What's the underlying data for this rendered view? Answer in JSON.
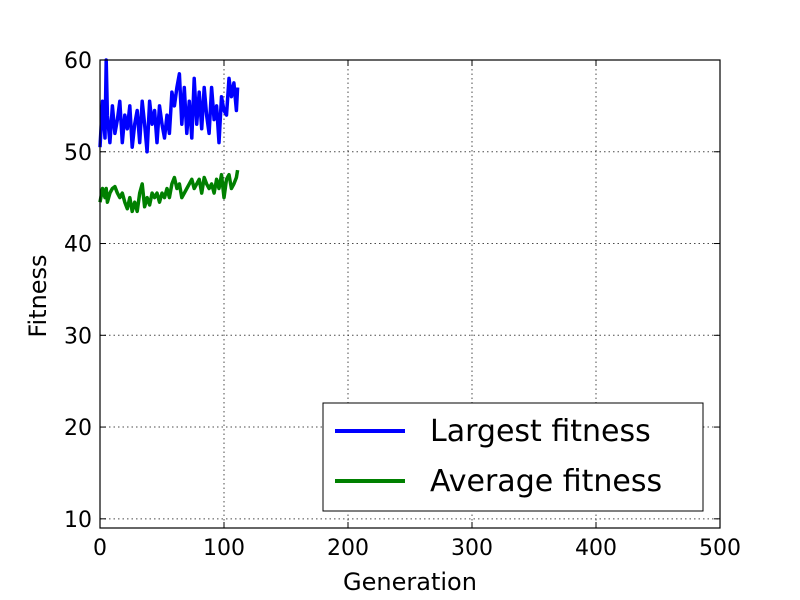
{
  "chart_data": {
    "type": "line",
    "xlabel": "Generation",
    "ylabel": "Fitness",
    "xlim": [
      0,
      500
    ],
    "ylim": [
      9,
      60
    ],
    "xticks": [
      0,
      100,
      200,
      300,
      400,
      500
    ],
    "yticks": [
      10,
      20,
      30,
      40,
      50,
      60
    ],
    "grid": true,
    "legend_position": "lower-right",
    "series": [
      {
        "name": "Largest fitness",
        "color": "#0000ff",
        "x": [
          0,
          2,
          4,
          5,
          6,
          8,
          10,
          12,
          14,
          16,
          18,
          20,
          22,
          24,
          26,
          28,
          30,
          32,
          34,
          36,
          38,
          40,
          42,
          44,
          46,
          48,
          50,
          52,
          54,
          56,
          58,
          60,
          62,
          64,
          66,
          68,
          70,
          72,
          74,
          76,
          78,
          80,
          82,
          84,
          86,
          88,
          90,
          92,
          94,
          96,
          98,
          100,
          102,
          104,
          106,
          108,
          110,
          111
        ],
        "values": [
          50.5,
          55.5,
          51.5,
          60,
          54,
          51,
          55,
          52,
          53.5,
          55.5,
          51,
          54,
          52.5,
          55,
          50.5,
          53,
          54.5,
          51,
          55.5,
          53,
          50,
          55.5,
          53,
          54.5,
          51,
          55,
          53,
          51.5,
          54,
          52,
          56.5,
          55,
          57,
          58.5,
          53,
          57,
          52,
          55.5,
          51.5,
          58,
          53,
          56.5,
          52.5,
          57,
          54,
          52,
          57,
          53.5,
          55,
          51,
          56,
          54.5,
          54,
          58,
          56,
          57.5,
          54.5,
          57
        ]
      },
      {
        "name": "Average fitness",
        "color": "#008000",
        "x": [
          0,
          2,
          4,
          5,
          6,
          8,
          10,
          12,
          14,
          16,
          18,
          20,
          22,
          24,
          26,
          28,
          30,
          32,
          34,
          36,
          38,
          40,
          42,
          44,
          46,
          48,
          50,
          52,
          54,
          56,
          58,
          60,
          62,
          64,
          66,
          68,
          70,
          72,
          74,
          76,
          78,
          80,
          82,
          84,
          86,
          88,
          90,
          92,
          94,
          96,
          98,
          100,
          102,
          104,
          106,
          108,
          110,
          111
        ],
        "values": [
          44.5,
          46,
          45,
          46,
          44.5,
          45.5,
          46,
          46.2,
          45.5,
          45,
          45.5,
          44.5,
          43.8,
          45,
          43.5,
          44.5,
          43.5,
          45.5,
          46.5,
          44,
          45,
          44.2,
          45.5,
          45,
          45.5,
          44.5,
          45.5,
          45,
          46,
          45,
          46.5,
          47.2,
          46,
          46.5,
          45,
          45.5,
          46,
          46.5,
          47,
          46,
          46.5,
          47,
          45.5,
          47.2,
          46.5,
          46,
          46.5,
          45.5,
          47,
          46,
          47.5,
          45,
          47,
          47.5,
          46,
          46.5,
          47.2,
          48
        ]
      }
    ]
  }
}
